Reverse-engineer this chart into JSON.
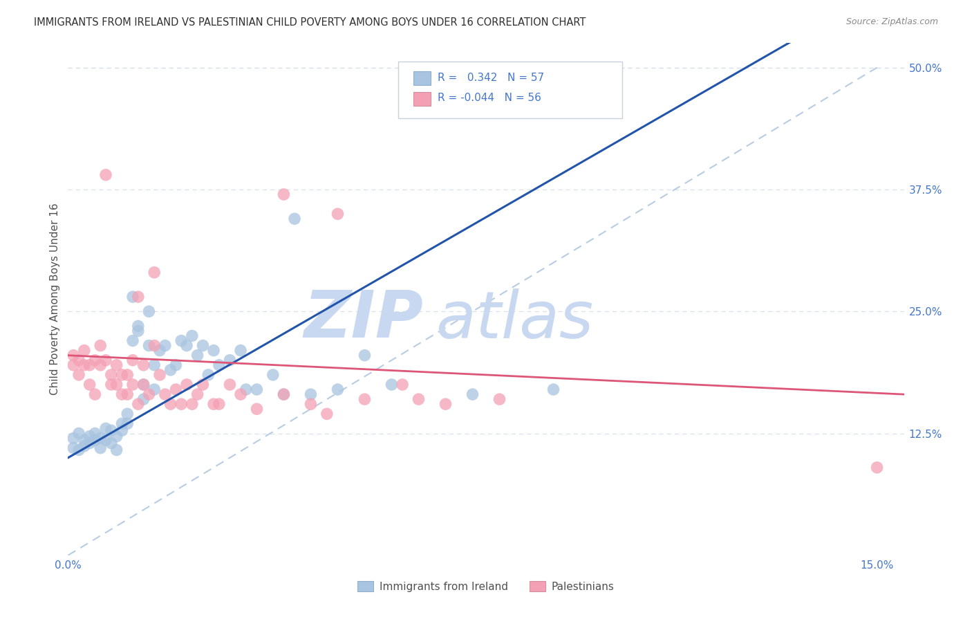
{
  "title": "IMMIGRANTS FROM IRELAND VS PALESTINIAN CHILD POVERTY AMONG BOYS UNDER 16 CORRELATION CHART",
  "source": "Source: ZipAtlas.com",
  "ylabel": "Child Poverty Among Boys Under 16",
  "legend_label_blue": "Immigrants from Ireland",
  "legend_label_pink": "Palestinians",
  "r_blue": "0.342",
  "n_blue": "57",
  "r_pink": "-0.044",
  "n_pink": "56",
  "blue_color": "#a8c4e0",
  "pink_color": "#f4a0b4",
  "blue_line_color": "#2255aa",
  "pink_line_color": "#dd5577",
  "dashed_line_color": "#b8cce4",
  "watermark_zip_color": "#c8d8f0",
  "watermark_atlas_color": "#c8d8f0",
  "title_color": "#303030",
  "axis_label_color": "#4477cc",
  "bg_color": "#ffffff",
  "grid_color": "#d8e0ec",
  "xlim": [
    0.0,
    0.155
  ],
  "ylim": [
    0.0,
    0.525
  ],
  "x_ticks": [
    0.0,
    0.03,
    0.06,
    0.09,
    0.12,
    0.15
  ],
  "y_ticks": [
    0.125,
    0.25,
    0.375,
    0.5
  ],
  "y_tick_labels": [
    "12.5%",
    "25.0%",
    "37.5%",
    "50.0%"
  ],
  "blue_line": {
    "x0": 0.0,
    "y0": 0.1,
    "x1": 0.055,
    "y1": 0.275
  },
  "pink_line": {
    "x0": 0.0,
    "y0": 0.205,
    "x1": 0.155,
    "y1": 0.165
  },
  "blue_scatter": [
    [
      0.001,
      0.12
    ],
    [
      0.001,
      0.11
    ],
    [
      0.002,
      0.125
    ],
    [
      0.002,
      0.108
    ],
    [
      0.003,
      0.118
    ],
    [
      0.003,
      0.112
    ],
    [
      0.004,
      0.122
    ],
    [
      0.004,
      0.115
    ],
    [
      0.005,
      0.118
    ],
    [
      0.005,
      0.125
    ],
    [
      0.006,
      0.12
    ],
    [
      0.006,
      0.11
    ],
    [
      0.007,
      0.13
    ],
    [
      0.007,
      0.118
    ],
    [
      0.008,
      0.115
    ],
    [
      0.008,
      0.128
    ],
    [
      0.009,
      0.122
    ],
    [
      0.009,
      0.108
    ],
    [
      0.01,
      0.135
    ],
    [
      0.01,
      0.128
    ],
    [
      0.011,
      0.145
    ],
    [
      0.011,
      0.135
    ],
    [
      0.012,
      0.265
    ],
    [
      0.012,
      0.22
    ],
    [
      0.013,
      0.235
    ],
    [
      0.013,
      0.23
    ],
    [
      0.014,
      0.175
    ],
    [
      0.014,
      0.16
    ],
    [
      0.015,
      0.215
    ],
    [
      0.015,
      0.25
    ],
    [
      0.016,
      0.195
    ],
    [
      0.016,
      0.17
    ],
    [
      0.017,
      0.21
    ],
    [
      0.018,
      0.215
    ],
    [
      0.019,
      0.19
    ],
    [
      0.02,
      0.195
    ],
    [
      0.021,
      0.22
    ],
    [
      0.022,
      0.215
    ],
    [
      0.023,
      0.225
    ],
    [
      0.024,
      0.205
    ],
    [
      0.025,
      0.215
    ],
    [
      0.026,
      0.185
    ],
    [
      0.027,
      0.21
    ],
    [
      0.028,
      0.195
    ],
    [
      0.03,
      0.2
    ],
    [
      0.032,
      0.21
    ],
    [
      0.033,
      0.17
    ],
    [
      0.035,
      0.17
    ],
    [
      0.038,
      0.185
    ],
    [
      0.04,
      0.165
    ],
    [
      0.042,
      0.345
    ],
    [
      0.045,
      0.165
    ],
    [
      0.05,
      0.17
    ],
    [
      0.055,
      0.205
    ],
    [
      0.06,
      0.175
    ],
    [
      0.075,
      0.165
    ],
    [
      0.09,
      0.17
    ]
  ],
  "pink_scatter": [
    [
      0.001,
      0.205
    ],
    [
      0.001,
      0.195
    ],
    [
      0.002,
      0.185
    ],
    [
      0.002,
      0.2
    ],
    [
      0.003,
      0.195
    ],
    [
      0.003,
      0.21
    ],
    [
      0.004,
      0.175
    ],
    [
      0.004,
      0.195
    ],
    [
      0.005,
      0.165
    ],
    [
      0.005,
      0.2
    ],
    [
      0.006,
      0.215
    ],
    [
      0.006,
      0.195
    ],
    [
      0.007,
      0.39
    ],
    [
      0.007,
      0.2
    ],
    [
      0.008,
      0.185
    ],
    [
      0.008,
      0.175
    ],
    [
      0.009,
      0.195
    ],
    [
      0.009,
      0.175
    ],
    [
      0.01,
      0.185
    ],
    [
      0.01,
      0.165
    ],
    [
      0.011,
      0.185
    ],
    [
      0.011,
      0.165
    ],
    [
      0.012,
      0.2
    ],
    [
      0.012,
      0.175
    ],
    [
      0.013,
      0.265
    ],
    [
      0.013,
      0.155
    ],
    [
      0.014,
      0.195
    ],
    [
      0.014,
      0.175
    ],
    [
      0.015,
      0.165
    ],
    [
      0.016,
      0.29
    ],
    [
      0.016,
      0.215
    ],
    [
      0.017,
      0.185
    ],
    [
      0.018,
      0.165
    ],
    [
      0.019,
      0.155
    ],
    [
      0.02,
      0.17
    ],
    [
      0.021,
      0.155
    ],
    [
      0.022,
      0.175
    ],
    [
      0.023,
      0.155
    ],
    [
      0.024,
      0.165
    ],
    [
      0.025,
      0.175
    ],
    [
      0.027,
      0.155
    ],
    [
      0.028,
      0.155
    ],
    [
      0.03,
      0.175
    ],
    [
      0.032,
      0.165
    ],
    [
      0.035,
      0.15
    ],
    [
      0.04,
      0.37
    ],
    [
      0.04,
      0.165
    ],
    [
      0.045,
      0.155
    ],
    [
      0.048,
      0.145
    ],
    [
      0.05,
      0.35
    ],
    [
      0.055,
      0.16
    ],
    [
      0.062,
      0.175
    ],
    [
      0.065,
      0.16
    ],
    [
      0.07,
      0.155
    ],
    [
      0.08,
      0.16
    ],
    [
      0.15,
      0.09
    ]
  ]
}
